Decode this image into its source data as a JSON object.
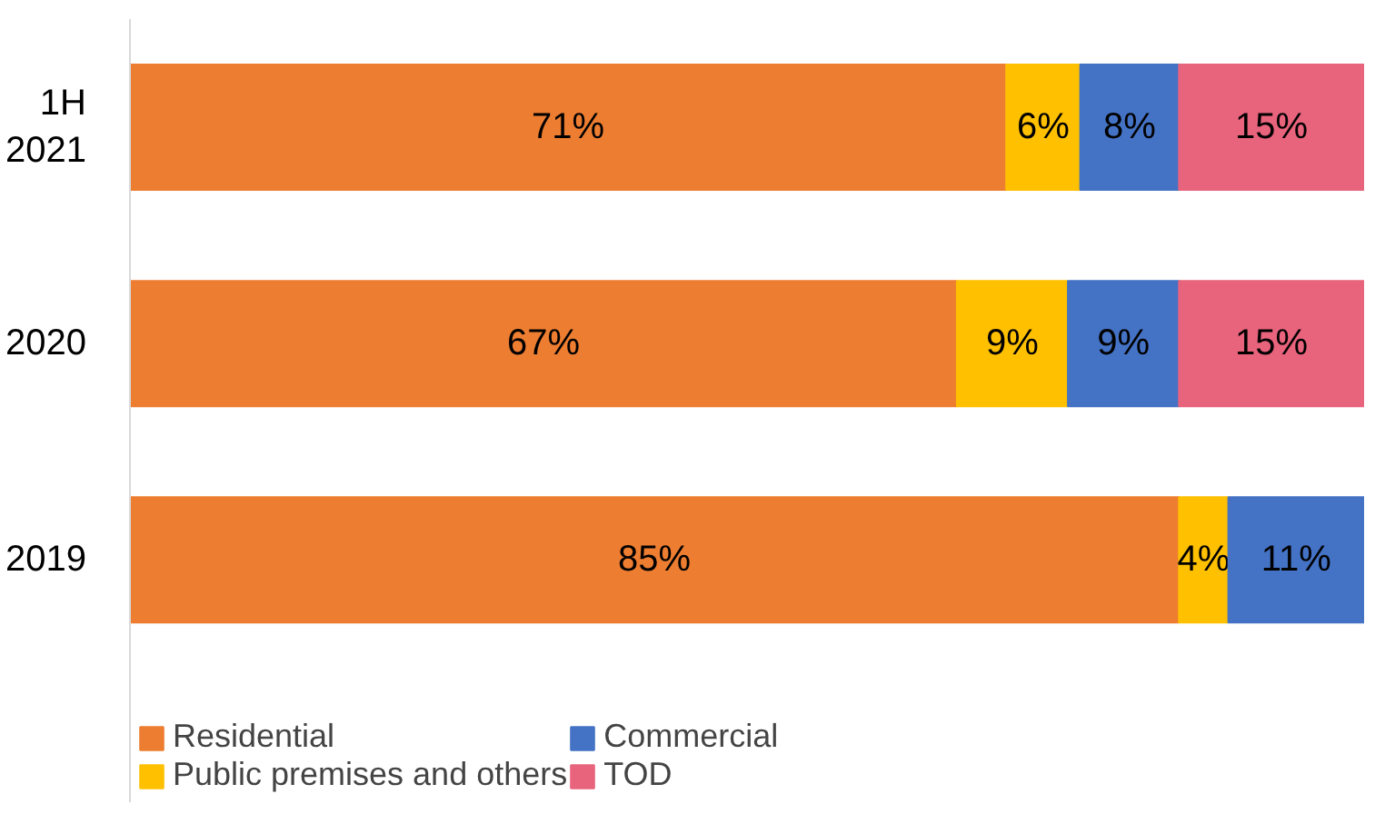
{
  "chart_data": {
    "type": "bar",
    "orientation": "horizontal",
    "stacked": true,
    "categories": [
      "1H 2021",
      "2020",
      "2019"
    ],
    "legend": "bottom",
    "grid": false,
    "series": [
      {
        "name": "Residential",
        "color": "#ed7d31",
        "values": [
          71,
          67,
          85
        ],
        "value_labels": [
          "71%",
          "67%",
          "85%"
        ]
      },
      {
        "name": "Public premises and others",
        "color": "#ffc000",
        "values": [
          6,
          9,
          4
        ],
        "value_labels": [
          "6%",
          "9%",
          "4%"
        ]
      },
      {
        "name": "Commercial",
        "color": "#4472c4",
        "values": [
          8,
          9,
          11
        ],
        "value_labels": [
          "8%",
          "9%",
          "11%"
        ]
      },
      {
        "name": "TOD",
        "color": "#e8637c",
        "values": [
          15,
          15,
          null
        ],
        "value_labels": [
          "15%",
          "15%",
          null
        ]
      }
    ]
  }
}
